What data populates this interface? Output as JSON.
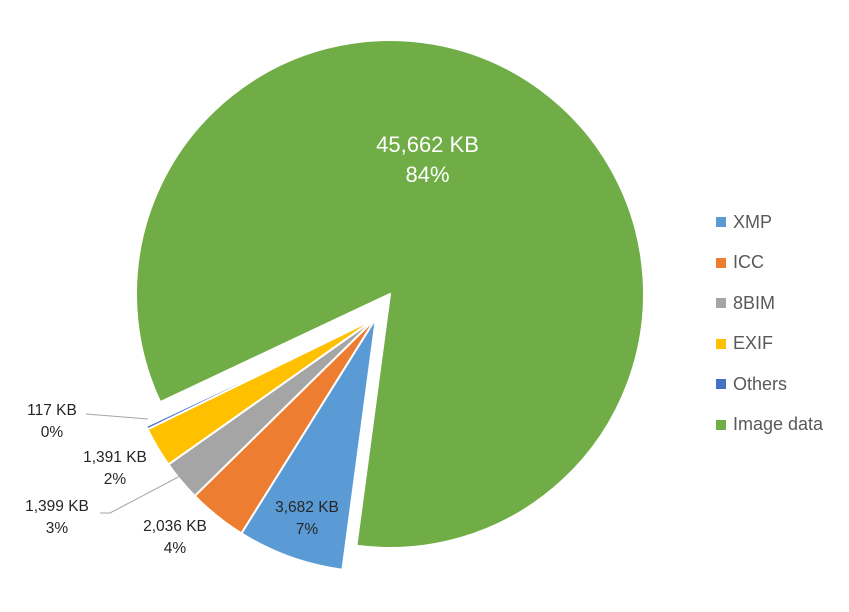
{
  "chart_data": {
    "type": "pie",
    "title": "",
    "unit": "KB",
    "exploded": [
      "XMP",
      "ICC",
      "8BIM",
      "EXIF",
      "Others"
    ],
    "legend_position": "right",
    "series": [
      {
        "name": "XMP",
        "value": 3682,
        "label_value": "3,682 KB",
        "label_pct": "7%",
        "color": "#5b9bd5"
      },
      {
        "name": "ICC",
        "value": 2036,
        "label_value": "2,036 KB",
        "label_pct": "4%",
        "color": "#ed7d31"
      },
      {
        "name": "8BIM",
        "value": 1399,
        "label_value": "1,399 KB",
        "label_pct": "3%",
        "color": "#a5a5a5"
      },
      {
        "name": "EXIF",
        "value": 1391,
        "label_value": "1,391 KB",
        "label_pct": "2%",
        "color": "#ffc000"
      },
      {
        "name": "Others",
        "value": 117,
        "label_value": "117 KB",
        "label_pct": "0%",
        "color": "#4472c4"
      },
      {
        "name": "Image data",
        "value": 45662,
        "label_value": "45,662 KB",
        "label_pct": "84%",
        "color": "#70ad47"
      }
    ]
  },
  "legend": {
    "items": [
      {
        "label": "XMP",
        "color": "#5b9bd5"
      },
      {
        "label": "ICC",
        "color": "#ed7d31"
      },
      {
        "label": "8BIM",
        "color": "#a5a5a5"
      },
      {
        "label": "EXIF",
        "color": "#ffc000"
      },
      {
        "label": "Others",
        "color": "#4472c4"
      },
      {
        "label": "Image data",
        "color": "#70ad47"
      }
    ]
  }
}
